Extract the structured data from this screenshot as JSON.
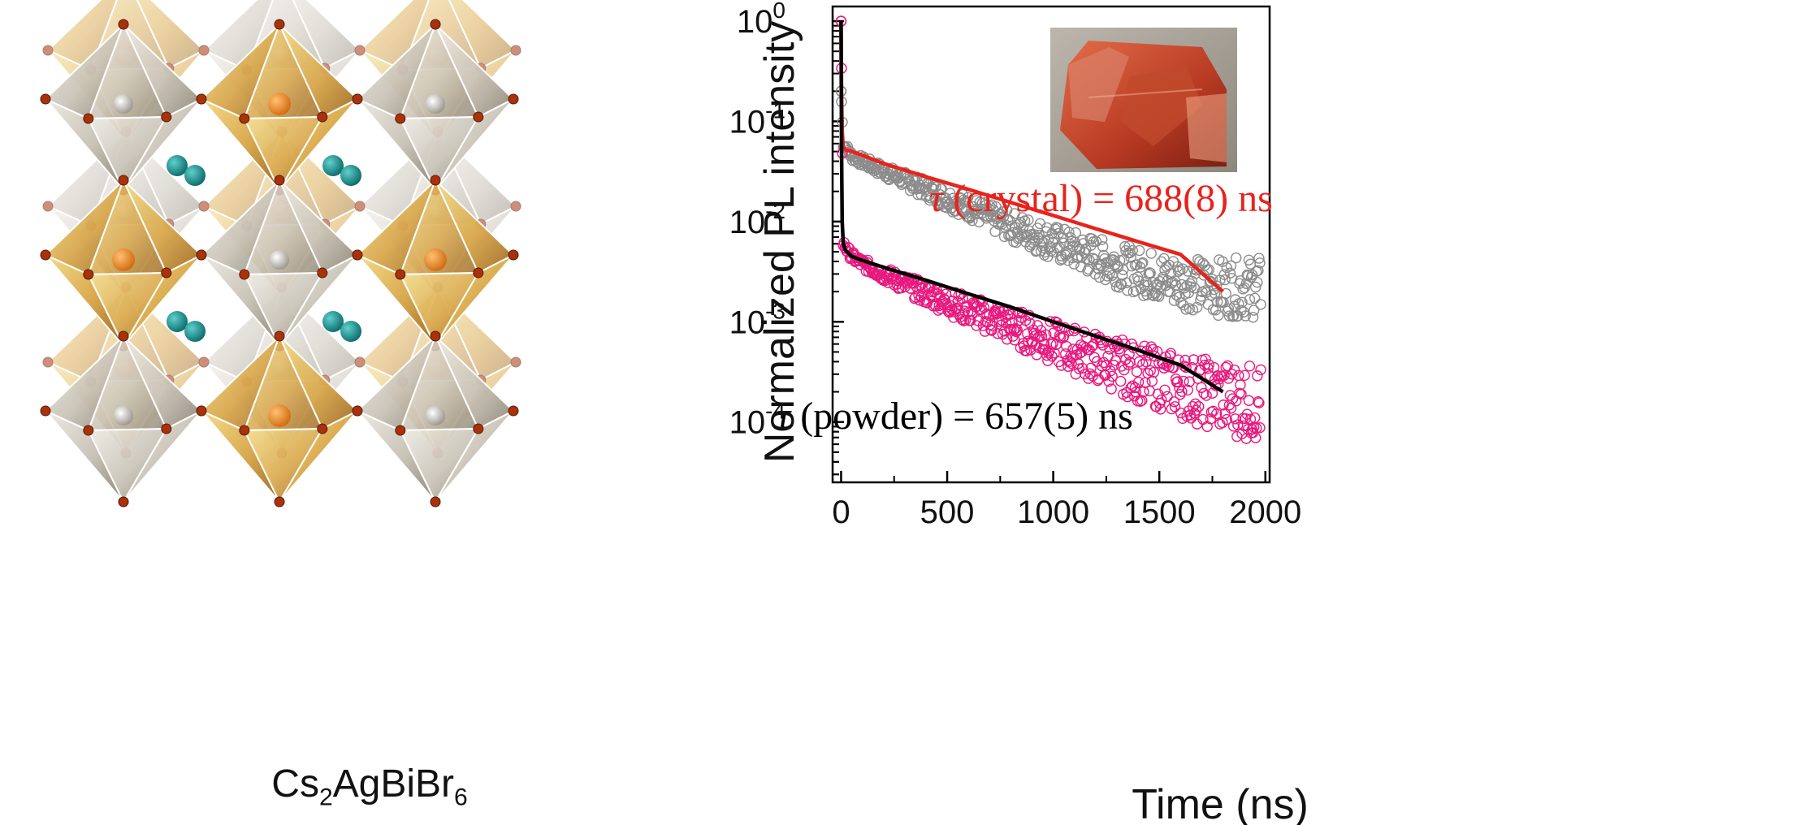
{
  "structure": {
    "formula_base": "Cs",
    "formula_sub1": "2",
    "formula_mid": "AgBiBr",
    "formula_sub2": "6"
  },
  "colors": {
    "crystal_fit": "#e8231d",
    "powder_fit": "#000000",
    "crystal_markers": "#8c8c8c",
    "powder_markers": "#e8197e"
  },
  "chart_data": {
    "type": "scatter",
    "title": "",
    "xlabel": "Time (ns)",
    "ylabel": "Normalized PL intensity",
    "yscale": "log",
    "xlim": [
      -40,
      2020
    ],
    "ylim": [
      2.5e-05,
      1.4
    ],
    "x_ticks": [
      "0",
      "500",
      "1000",
      "1500",
      "2000"
    ],
    "y_ticks": [
      {
        "base": "10",
        "exp": "0"
      },
      {
        "base": "10",
        "exp": "-1"
      },
      {
        "base": "10",
        "exp": "-2"
      },
      {
        "base": "10",
        "exp": "-3"
      },
      {
        "base": "10",
        "exp": "-4"
      }
    ],
    "series": [
      {
        "name": "crystal data",
        "kind": "markers",
        "x": [
          0,
          10,
          50,
          100,
          200,
          300,
          400,
          500,
          600,
          700,
          800,
          900,
          1000,
          1100,
          1200,
          1300,
          1400,
          1500,
          1600,
          1700,
          1800,
          1900,
          1980
        ],
        "y": [
          0.2,
          0.06,
          0.045,
          0.04,
          0.032,
          0.026,
          0.021,
          0.017,
          0.014,
          0.011,
          0.009,
          0.0075,
          0.0062,
          0.0052,
          0.0044,
          0.0037,
          0.0032,
          0.0028,
          0.0025,
          0.0023,
          0.0022,
          0.0022,
          0.0022
        ]
      },
      {
        "name": "powder data",
        "kind": "markers",
        "x": [
          0,
          10,
          50,
          100,
          200,
          300,
          400,
          500,
          600,
          700,
          800,
          900,
          1000,
          1100,
          1200,
          1300,
          1400,
          1500,
          1600,
          1700,
          1800,
          1900,
          1980
        ],
        "y": [
          1.0,
          0.006,
          0.0045,
          0.0038,
          0.003,
          0.0024,
          0.0019,
          0.0016,
          0.0013,
          0.0011,
          0.0009,
          0.00075,
          0.00062,
          0.00052,
          0.00044,
          0.00037,
          0.00031,
          0.00027,
          0.00023,
          0.0002,
          0.00018,
          0.00016,
          0.00015
        ]
      },
      {
        "name": "crystal fit",
        "kind": "line",
        "x": [
          0,
          2,
          5,
          10,
          20,
          50,
          100,
          200,
          400,
          600,
          800,
          1000,
          1200,
          1400,
          1600,
          1800
        ],
        "y": [
          1.0,
          0.2,
          0.08,
          0.055,
          0.052,
          0.05,
          0.046,
          0.038,
          0.028,
          0.021,
          0.0155,
          0.0115,
          0.0085,
          0.0063,
          0.0047,
          0.002
        ]
      },
      {
        "name": "powder fit",
        "kind": "line",
        "x": [
          0,
          2,
          5,
          10,
          20,
          50,
          100,
          200,
          400,
          600,
          800,
          1000,
          1200,
          1400,
          1600,
          1800
        ],
        "y": [
          1.0,
          0.05,
          0.01,
          0.006,
          0.0052,
          0.0045,
          0.0041,
          0.0035,
          0.0026,
          0.0019,
          0.0014,
          0.001,
          0.00072,
          0.00052,
          0.00037,
          0.0002
        ]
      }
    ],
    "annotations": {
      "crystal_tau_symbol": "τ",
      "crystal_tau_text": " (crystal) = 688(8) ns",
      "powder_tau_symbol": "τ",
      "powder_tau_text": " (powder) = 657(5) ns"
    }
  }
}
